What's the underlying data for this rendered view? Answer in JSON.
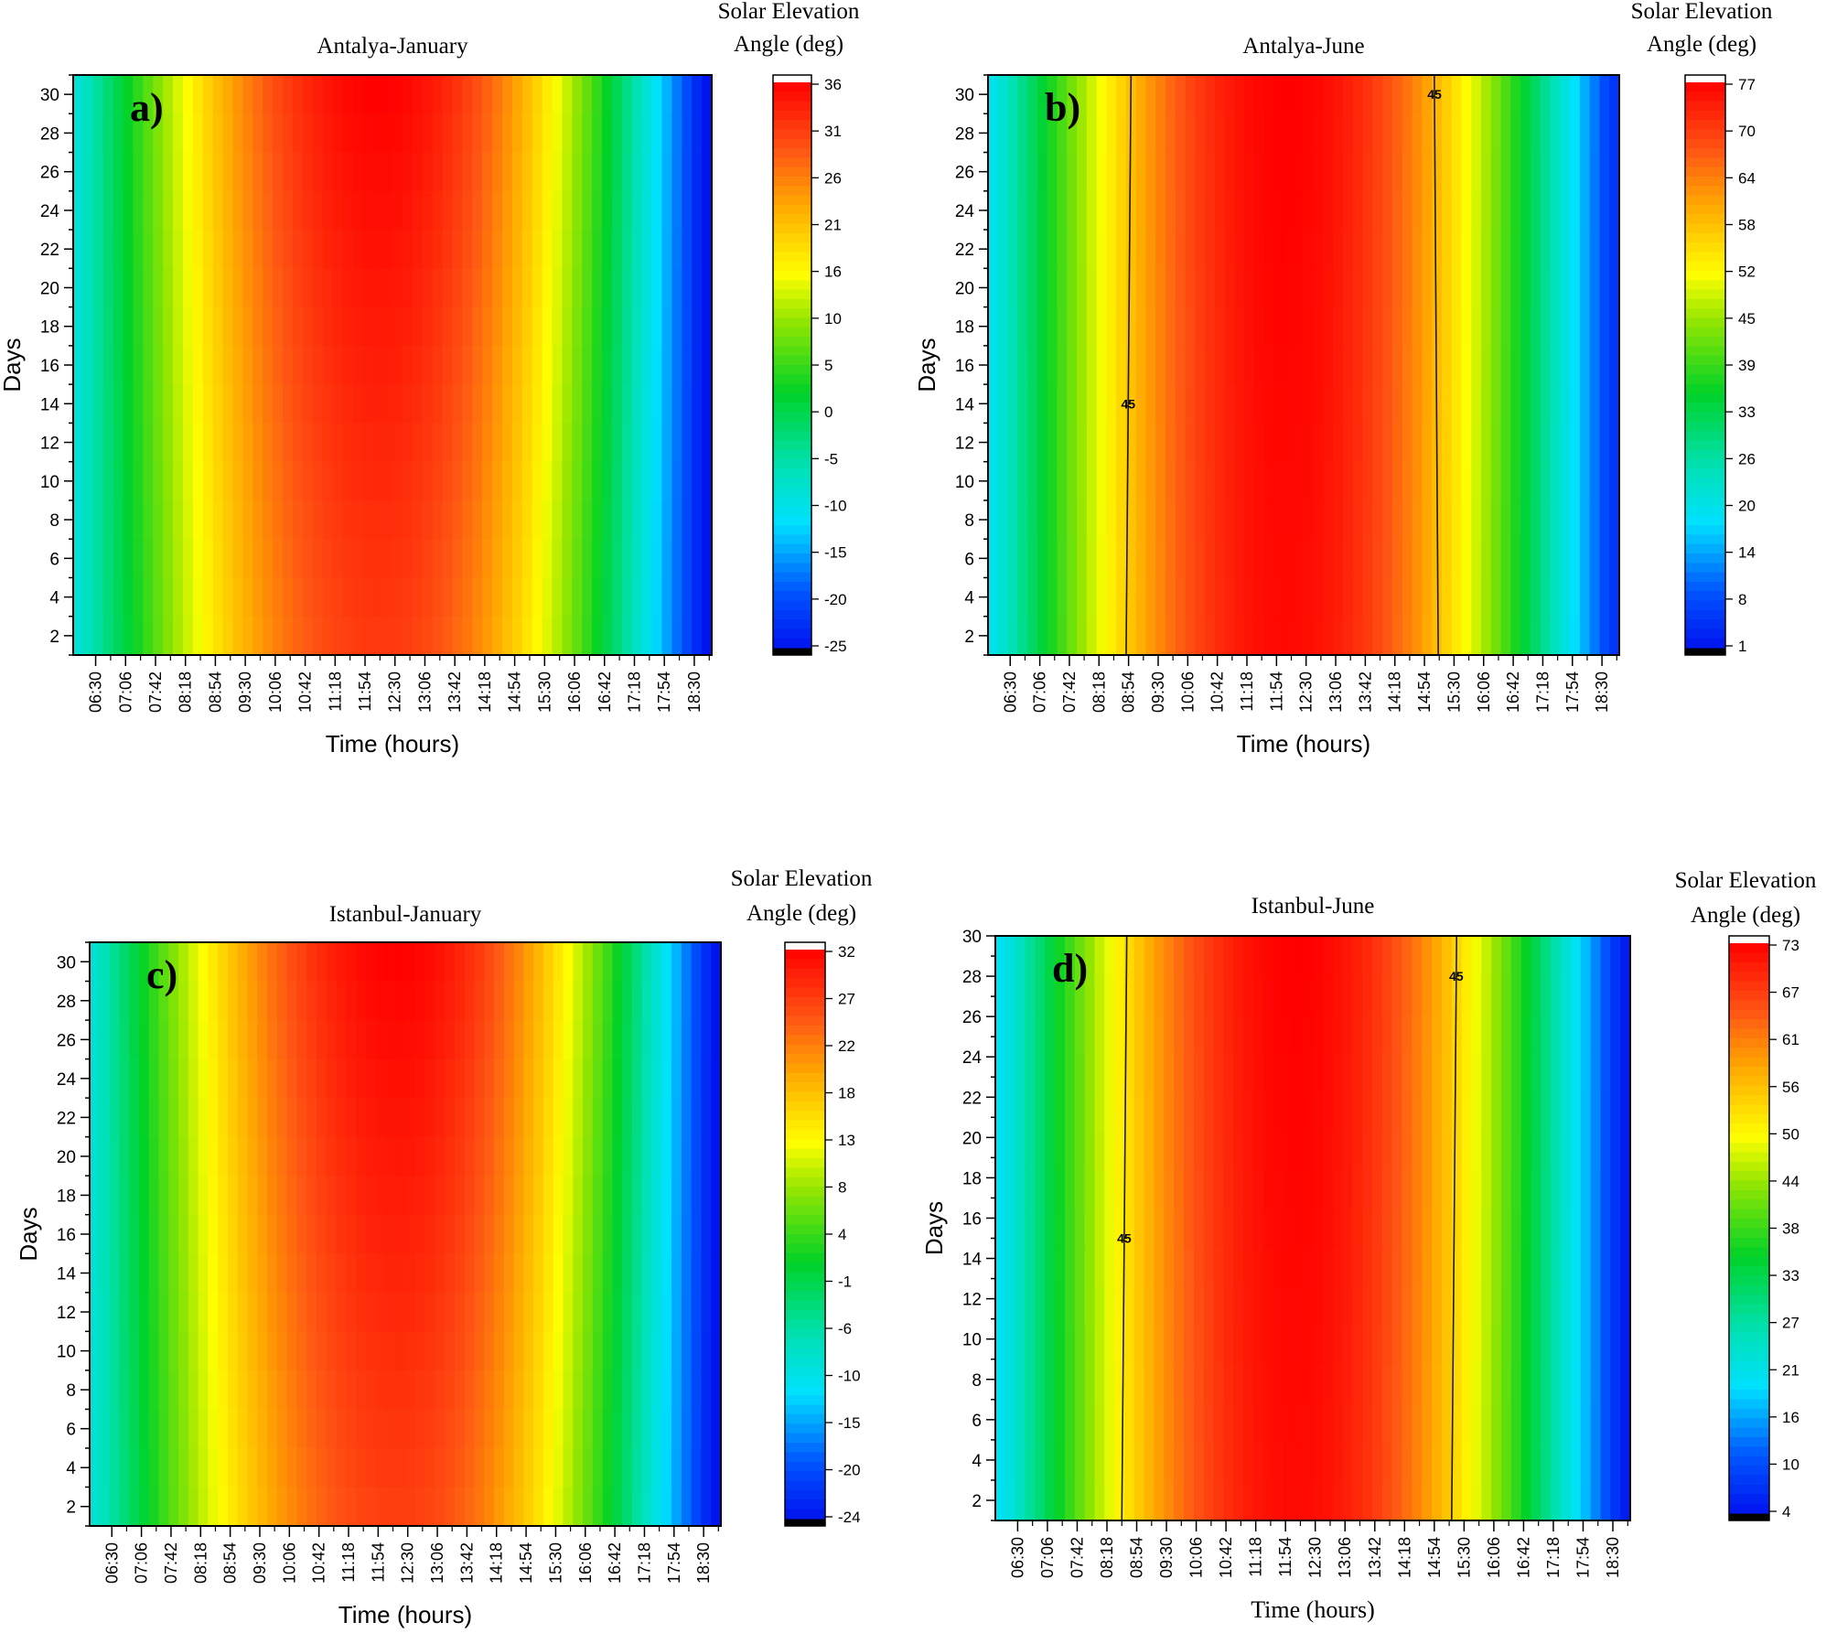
{
  "chart_data": [
    {
      "type": "heatmap",
      "panel_label": "a)",
      "title": "Antalya-January",
      "xlabel": "Time (hours)",
      "ylabel": "Days",
      "colorbar_title_line1": "Solar Elevation",
      "colorbar_title_line2": "Angle (deg)",
      "x_ticks": [
        "06:30",
        "07:06",
        "07:42",
        "08:18",
        "08:54",
        "09:30",
        "10:06",
        "10:42",
        "11:18",
        "11:54",
        "12:30",
        "13:06",
        "13:42",
        "14:18",
        "14:54",
        "15:30",
        "16:06",
        "16:42",
        "17:18",
        "17:54",
        "18:30"
      ],
      "y_ticks": [
        "2",
        "4",
        "6",
        "8",
        "10",
        "12",
        "14",
        "16",
        "18",
        "20",
        "22",
        "24",
        "26",
        "28",
        "30"
      ],
      "ylim": [
        1,
        31
      ],
      "colorbar_ticks": [
        "36",
        "31",
        "26",
        "21",
        "16",
        "10",
        "5",
        "0",
        "-5",
        "-10",
        "-15",
        "-20",
        "-25"
      ],
      "vmin": -25,
      "vmax": 36,
      "noon_hour": 12.2,
      "peak_start": 31,
      "peak_end": 36,
      "start_hour": 6.2,
      "end_hour": 18.7,
      "start_val": -8,
      "end_val": -25,
      "contour_labels": []
    },
    {
      "type": "heatmap",
      "panel_label": "b)",
      "title": "Antalya-June",
      "xlabel": "Time (hours)",
      "ylabel": "Days",
      "colorbar_title_line1": "Solar Elevation",
      "colorbar_title_line2": "Angle (deg)",
      "x_ticks": [
        "06:30",
        "07:06",
        "07:42",
        "08:18",
        "08:54",
        "09:30",
        "10:06",
        "10:42",
        "11:18",
        "11:54",
        "12:30",
        "13:06",
        "13:42",
        "14:18",
        "14:54",
        "15:30",
        "16:06",
        "16:42",
        "17:18",
        "17:54",
        "18:30"
      ],
      "y_ticks": [
        "2",
        "4",
        "6",
        "8",
        "10",
        "12",
        "14",
        "16",
        "18",
        "20",
        "22",
        "24",
        "26",
        "28",
        "30"
      ],
      "ylim": [
        1,
        31
      ],
      "colorbar_ticks": [
        "77",
        "70",
        "64",
        "58",
        "52",
        "45",
        "39",
        "33",
        "26",
        "20",
        "14",
        "8",
        "1"
      ],
      "vmin": 1,
      "vmax": 77,
      "noon_hour": 12.1,
      "peak_start": 76,
      "peak_end": 77,
      "start_hour": 6.2,
      "end_hour": 18.7,
      "start_val": 20,
      "end_val": 5,
      "contour_level": 45,
      "contour_hours": [
        [
          8.85,
          8.95
        ],
        [
          15.18,
          15.1
        ]
      ],
      "contour_labels": [
        {
          "text": "45",
          "day": 14,
          "line": 0
        },
        {
          "text": "45",
          "day": 30,
          "line": 1
        }
      ]
    },
    {
      "type": "heatmap",
      "panel_label": "c)",
      "title": "Istanbul-January",
      "xlabel": "Time (hours)",
      "ylabel": "Days",
      "colorbar_title_line1": "Solar Elevation",
      "colorbar_title_line2": "Angle (deg)",
      "x_ticks": [
        "06:30",
        "07:06",
        "07:42",
        "08:18",
        "08:54",
        "09:30",
        "10:06",
        "10:42",
        "11:18",
        "11:54",
        "12:30",
        "13:06",
        "13:42",
        "14:18",
        "14:54",
        "15:30",
        "16:06",
        "16:42",
        "17:18",
        "17:54",
        "18:30"
      ],
      "y_ticks": [
        "2",
        "4",
        "6",
        "8",
        "10",
        "12",
        "14",
        "16",
        "18",
        "20",
        "22",
        "24",
        "26",
        "28",
        "30"
      ],
      "ylim": [
        1,
        31
      ],
      "colorbar_ticks": [
        "32",
        "27",
        "22",
        "18",
        "13",
        "8",
        "4",
        "-1",
        "-6",
        "-10",
        "-15",
        "-20",
        "-24"
      ],
      "vmin": -24,
      "vmax": 32,
      "noon_hour": 12.3,
      "peak_start": 27,
      "peak_end": 32,
      "start_hour": 6.2,
      "end_hour": 18.7,
      "start_val": -8,
      "end_val": -24,
      "contour_labels": []
    },
    {
      "type": "heatmap",
      "panel_label": "d)",
      "title": "Istanbul-June",
      "xlabel": "Time (hours)",
      "ylabel": "Days",
      "colorbar_title_line1": "Solar Elevation",
      "colorbar_title_line2": "Angle (deg)",
      "x_ticks": [
        "06:30",
        "07:06",
        "07:42",
        "08:18",
        "08:54",
        "09:30",
        "10:06",
        "10:42",
        "11:18",
        "11:54",
        "12:30",
        "13:06",
        "13:42",
        "14:18",
        "14:54",
        "15:30",
        "16:06",
        "16:42",
        "17:18",
        "17:54",
        "18:30"
      ],
      "y_ticks": [
        "2",
        "4",
        "6",
        "8",
        "10",
        "12",
        "14",
        "16",
        "18",
        "20",
        "22",
        "24",
        "26",
        "28",
        "30"
      ],
      "ylim": [
        1,
        30
      ],
      "colorbar_ticks": [
        "73",
        "67",
        "61",
        "56",
        "50",
        "44",
        "38",
        "33",
        "27",
        "21",
        "16",
        "10",
        "4"
      ],
      "vmin": 4,
      "vmax": 73,
      "noon_hour": 12.1,
      "peak_start": 72,
      "peak_end": 73,
      "start_hour": 6.2,
      "end_hour": 18.7,
      "start_val": 20,
      "end_val": 5,
      "contour_level": 45,
      "contour_hours": [
        [
          8.6,
          8.7
        ],
        [
          15.25,
          15.35
        ]
      ],
      "contour_labels": [
        {
          "text": "45",
          "day": 15,
          "line": 0
        },
        {
          "text": "45",
          "day": 28,
          "line": 1
        }
      ]
    }
  ]
}
